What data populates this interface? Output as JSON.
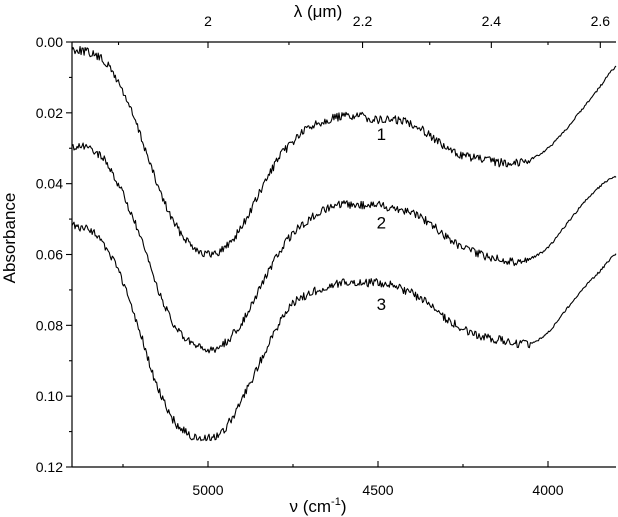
{
  "chart_data": {
    "type": "line",
    "x_axis_bottom": {
      "label": "ν (cm",
      "label_sup": "-1",
      "label_end": ")",
      "range": [
        5400,
        3800
      ],
      "reversed": true,
      "ticks": [
        5000,
        4500,
        4000
      ],
      "tick_labels": [
        "5000",
        "4500",
        "4000"
      ]
    },
    "x_axis_top": {
      "label": "λ (μm)",
      "ticks": [
        2.0,
        2.2,
        2.4,
        2.6
      ],
      "tick_labels": [
        "2",
        "2.2",
        "2.4",
        "2.6"
      ]
    },
    "y_axis": {
      "label": "Absorbance",
      "range": [
        0.0,
        0.12
      ],
      "reversed": true,
      "ticks": [
        0.0,
        0.02,
        0.04,
        0.06,
        0.08,
        0.1,
        0.12
      ],
      "tick_labels": [
        "0.00",
        "0.02",
        "0.04",
        "0.06",
        "0.08",
        "0.10",
        "0.12"
      ]
    },
    "series": [
      {
        "name": "1",
        "x": [
          5400,
          5350,
          5300,
          5250,
          5200,
          5150,
          5100,
          5050,
          5000,
          4950,
          4900,
          4850,
          4800,
          4750,
          4700,
          4650,
          4600,
          4550,
          4500,
          4450,
          4400,
          4350,
          4300,
          4250,
          4200,
          4150,
          4100,
          4050,
          4000,
          3950,
          3900,
          3850,
          3800
        ],
        "y": [
          0.002,
          0.003,
          0.006,
          0.014,
          0.026,
          0.04,
          0.051,
          0.057,
          0.06,
          0.058,
          0.052,
          0.043,
          0.034,
          0.028,
          0.024,
          0.022,
          0.021,
          0.021,
          0.022,
          0.022,
          0.023,
          0.026,
          0.03,
          0.032,
          0.033,
          0.034,
          0.034,
          0.033,
          0.03,
          0.025,
          0.019,
          0.013,
          0.007
        ]
      },
      {
        "name": "2",
        "x": [
          5400,
          5350,
          5300,
          5250,
          5200,
          5150,
          5100,
          5050,
          5000,
          4950,
          4900,
          4850,
          4800,
          4750,
          4700,
          4650,
          4600,
          4550,
          4500,
          4450,
          4400,
          4350,
          4300,
          4250,
          4200,
          4150,
          4100,
          4050,
          4000,
          3950,
          3900,
          3850,
          3800
        ],
        "y": [
          0.03,
          0.03,
          0.034,
          0.043,
          0.055,
          0.069,
          0.08,
          0.085,
          0.087,
          0.085,
          0.079,
          0.07,
          0.061,
          0.054,
          0.05,
          0.047,
          0.046,
          0.046,
          0.046,
          0.047,
          0.048,
          0.051,
          0.055,
          0.058,
          0.06,
          0.061,
          0.062,
          0.061,
          0.058,
          0.052,
          0.046,
          0.041,
          0.038
        ]
      },
      {
        "name": "3",
        "x": [
          5400,
          5350,
          5300,
          5250,
          5200,
          5150,
          5100,
          5050,
          5000,
          4950,
          4900,
          4850,
          4800,
          4750,
          4700,
          4650,
          4600,
          4550,
          4500,
          4450,
          4400,
          4350,
          4300,
          4250,
          4200,
          4150,
          4100,
          4050,
          4000,
          3950,
          3900,
          3850,
          3800
        ],
        "y": [
          0.052,
          0.053,
          0.058,
          0.068,
          0.082,
          0.097,
          0.107,
          0.111,
          0.112,
          0.109,
          0.101,
          0.091,
          0.081,
          0.074,
          0.071,
          0.069,
          0.068,
          0.068,
          0.068,
          0.069,
          0.071,
          0.074,
          0.078,
          0.081,
          0.083,
          0.084,
          0.085,
          0.085,
          0.082,
          0.076,
          0.07,
          0.065,
          0.06
        ]
      }
    ],
    "curve_labels": [
      {
        "text": "1",
        "x": 4490,
        "y": 0.026
      },
      {
        "text": "2",
        "x": 4490,
        "y": 0.051
      },
      {
        "text": "3",
        "x": 4490,
        "y": 0.074
      }
    ],
    "grid": false,
    "legend": "none"
  }
}
